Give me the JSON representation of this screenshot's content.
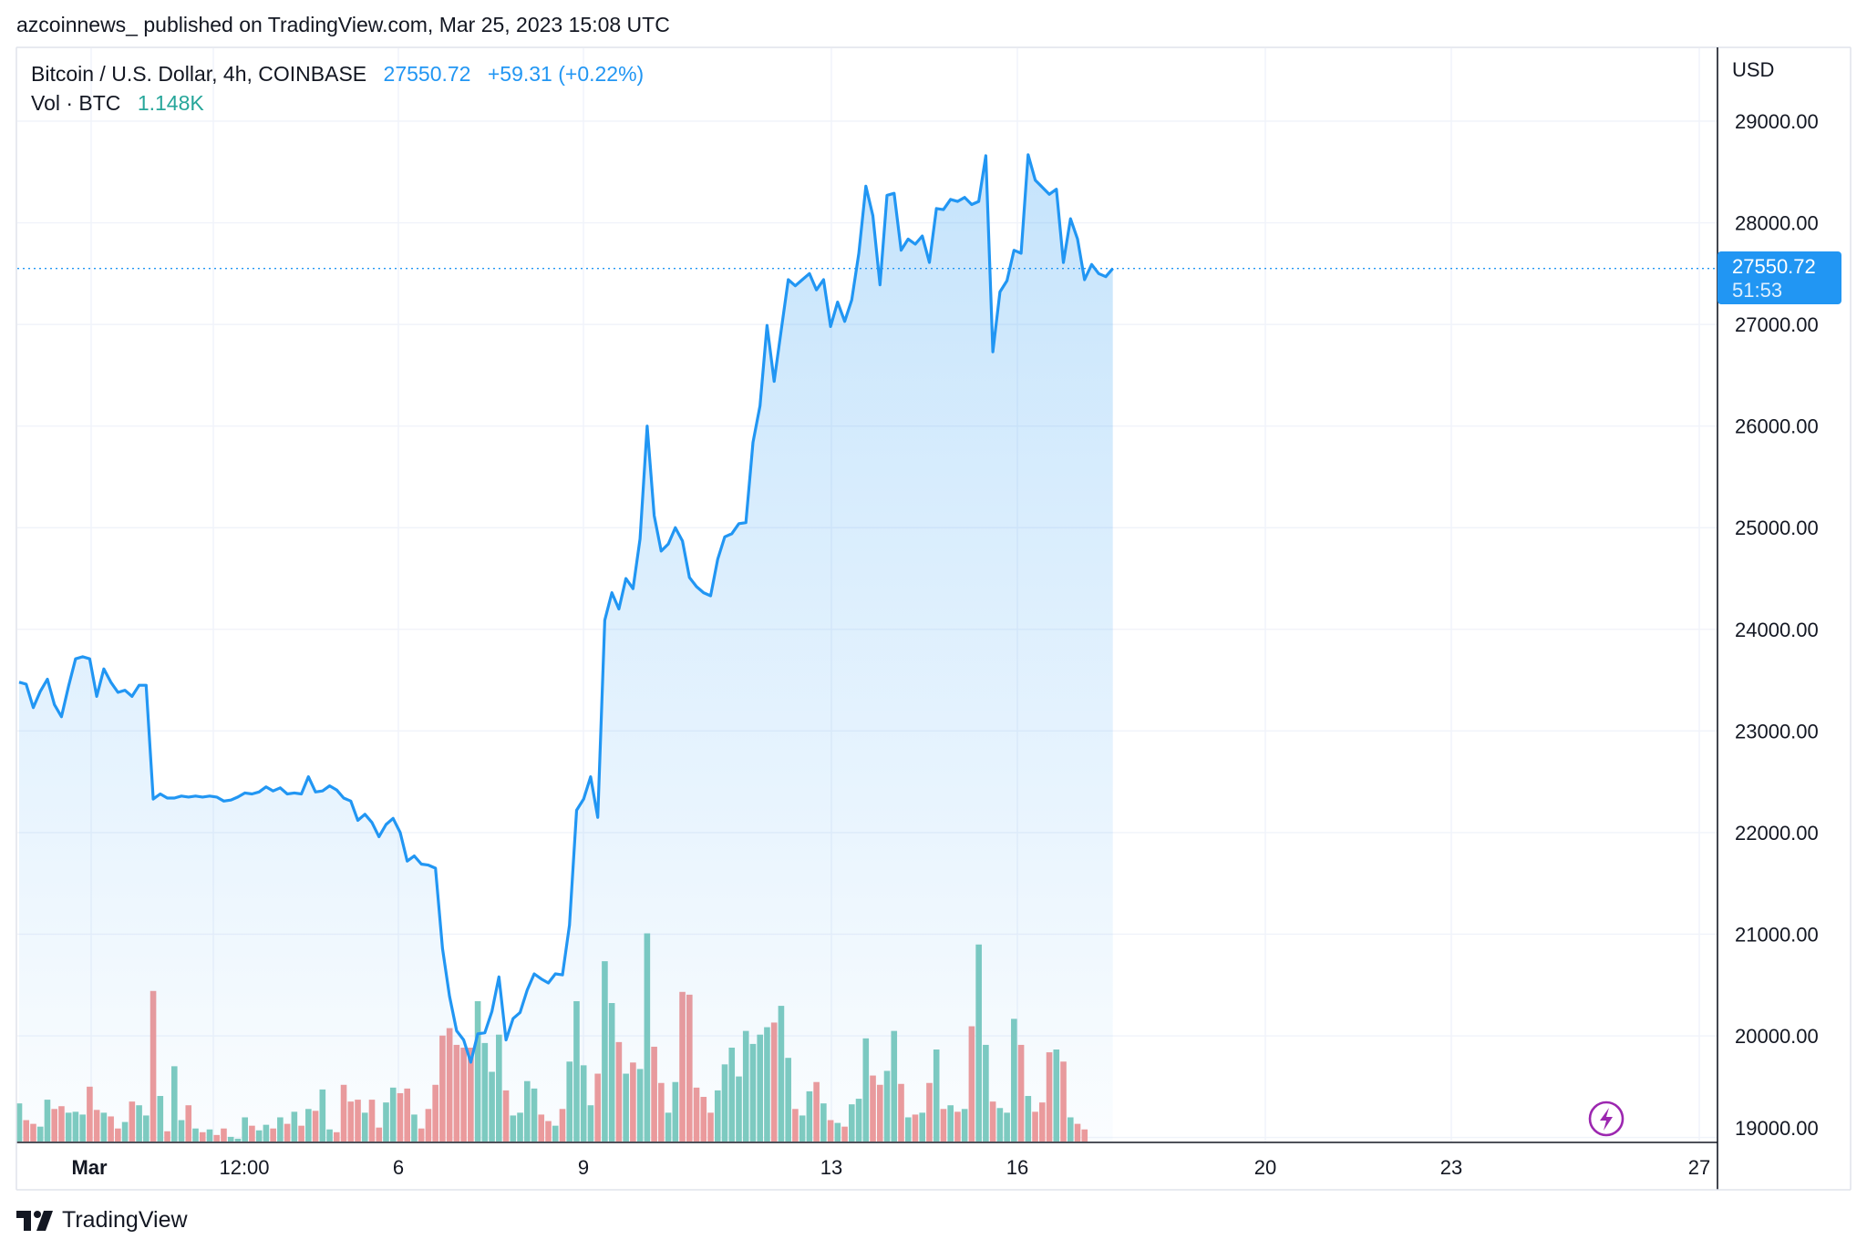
{
  "header": {
    "publisher": "azcoinnews_ published on TradingView.com, Mar 25, 2023 15:08 UTC"
  },
  "legend": {
    "symbol": "Bitcoin / U.S. Dollar, 4h, COINBASE",
    "last": "27550.72",
    "change": "+59.31 (+0.22%)",
    "vol_label": "Vol · BTC",
    "vol_value": "1.148K"
  },
  "axis": {
    "currency": "USD",
    "y_ticks": [
      "29000.00",
      "28000.00",
      "27000.00",
      "26000.00",
      "25000.00",
      "24000.00",
      "23000.00",
      "22000.00",
      "21000.00",
      "20000.00",
      "19000.00"
    ],
    "x_ticks": [
      "Mar",
      "12:00",
      "6",
      "9",
      "13",
      "16",
      "20",
      "23",
      "27"
    ]
  },
  "price_badge": {
    "price": "27550.72",
    "countdown": "51:53"
  },
  "footer": {
    "brand": "TradingView"
  },
  "colors": {
    "line": "#2196f3",
    "badge": "#2196f3",
    "vol_up": "#7fcbbf",
    "vol_down": "#ef9a9a",
    "vol_label": "#26a69a",
    "grid": "#f0f3fa",
    "flash": "#9c27b0"
  },
  "chart_data": {
    "type": "line",
    "title": "Bitcoin / U.S. Dollar, 4h, COINBASE",
    "ylabel": "USD",
    "ylim": [
      18850,
      29600
    ],
    "grid": true,
    "x_ticks": [
      "Mar",
      "12:00",
      "6",
      "9",
      "13",
      "16",
      "20",
      "23",
      "27"
    ],
    "series": [
      {
        "name": "Bitcoin / U.S. Dollar",
        "values": [
          23480,
          23460,
          23230,
          23390,
          23510,
          23260,
          23140,
          23440,
          23710,
          23730,
          23710,
          23340,
          23610,
          23480,
          23380,
          23400,
          23340,
          23450,
          23450,
          22330,
          22380,
          22340,
          22340,
          22360,
          22350,
          22360,
          22350,
          22360,
          22350,
          22310,
          22320,
          22350,
          22390,
          22380,
          22400,
          22450,
          22410,
          22440,
          22380,
          22390,
          22380,
          22550,
          22400,
          22410,
          22460,
          22420,
          22340,
          22310,
          22120,
          22180,
          22100,
          21960,
          22080,
          22140,
          22000,
          21720,
          21770,
          21690,
          21680,
          21650,
          20860,
          20390,
          20050,
          19960,
          19740,
          20020,
          20030,
          20240,
          20580,
          19960,
          20170,
          20230,
          20450,
          20610,
          20560,
          20520,
          20610,
          20600,
          21090,
          22220,
          22330,
          22550,
          22150,
          24090,
          24360,
          24200,
          24500,
          24400,
          24890,
          26000,
          25120,
          24770,
          24840,
          25000,
          24870,
          24510,
          24420,
          24360,
          24330,
          24690,
          24910,
          24940,
          25040,
          25050,
          25840,
          26200,
          26990,
          26440,
          26940,
          27440,
          27380,
          27440,
          27500,
          27340,
          27440,
          26980,
          27220,
          27030,
          27240,
          27700,
          28360,
          28070,
          27390,
          28270,
          28290,
          27730,
          27840,
          27790,
          27870,
          27610,
          28140,
          28130,
          28230,
          28210,
          28250,
          28180,
          28210,
          28660,
          26730,
          27320,
          27430,
          27730,
          27700,
          28670,
          28420,
          28350,
          28280,
          28330,
          27610,
          28040,
          27840,
          27440,
          27590,
          27500,
          27470,
          27550.72
        ]
      },
      {
        "name": "Vol · BTC",
        "values": [
          0.41,
          0.23,
          0.19,
          0.16,
          0.45,
          0.35,
          0.38,
          0.31,
          0.32,
          0.29,
          0.59,
          0.34,
          0.31,
          0.27,
          0.14,
          0.21,
          0.43,
          0.39,
          0.28,
          1.62,
          0.49,
          0.11,
          0.81,
          0.23,
          0.39,
          0.14,
          0.1,
          0.13,
          0.07,
          0.14,
          0.05,
          0.03,
          0.26,
          0.17,
          0.12,
          0.18,
          0.14,
          0.26,
          0.19,
          0.32,
          0.17,
          0.35,
          0.33,
          0.56,
          0.13,
          0.1,
          0.61,
          0.43,
          0.45,
          0.31,
          0.45,
          0.15,
          0.42,
          0.58,
          0.52,
          0.57,
          0.29,
          0.14,
          0.35,
          0.61,
          1.14,
          1.22,
          1.04,
          1.01,
          1.01,
          1.51,
          1.06,
          0.75,
          1.15,
          0.55,
          0.28,
          0.31,
          0.65,
          0.57,
          0.29,
          0.22,
          0.17,
          0.35,
          0.86,
          1.51,
          0.82,
          0.39,
          0.73,
          1.94,
          1.49,
          1.07,
          0.73,
          0.85,
          0.78,
          2.24,
          1.02,
          0.63,
          0.31,
          0.64,
          1.61,
          1.58,
          0.58,
          0.48,
          0.31,
          0.55,
          0.83,
          1.01,
          0.7,
          1.19,
          1.05,
          1.15,
          1.23,
          1.28,
          1.46,
          0.9,
          0.35,
          0.28,
          0.54,
          0.64,
          0.41,
          0.23,
          0.2,
          0.16,
          0.4,
          0.46,
          1.11,
          0.71,
          0.61,
          0.76,
          1.19,
          0.62,
          0.26,
          0.29,
          0.31,
          0.63,
          0.99,
          0.35,
          0.39,
          0.32,
          0.35,
          1.24,
          2.12,
          1.04,
          0.43,
          0.36,
          0.31,
          1.32,
          1.04,
          0.49,
          0.32,
          0.42,
          0.96,
          0.99,
          0.86,
          0.26,
          0.19,
          0.13
        ]
      }
    ]
  }
}
